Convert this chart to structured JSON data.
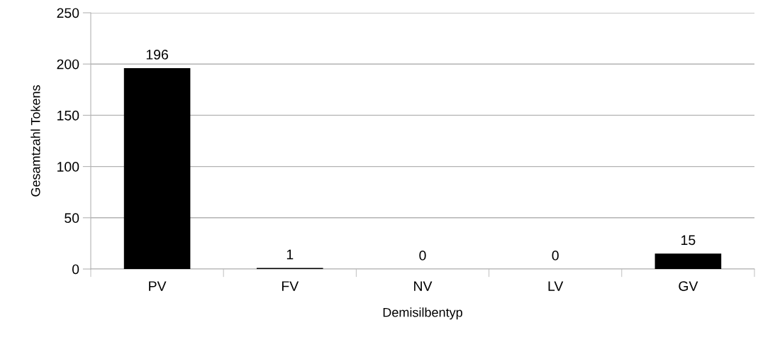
{
  "chart_data": {
    "type": "bar",
    "xlabel": "Demisilbentyp",
    "ylabel": "Gesamtzahl Tokens",
    "categories": [
      "PV",
      "FV",
      "NV",
      "LV",
      "GV"
    ],
    "values": [
      196,
      1,
      0,
      0,
      15
    ],
    "color": "#000000",
    "ylim": [
      0,
      250
    ],
    "yticks": [
      0,
      50,
      100,
      150,
      200,
      250
    ],
    "grid": "y",
    "data_labels": true,
    "legend": false
  }
}
